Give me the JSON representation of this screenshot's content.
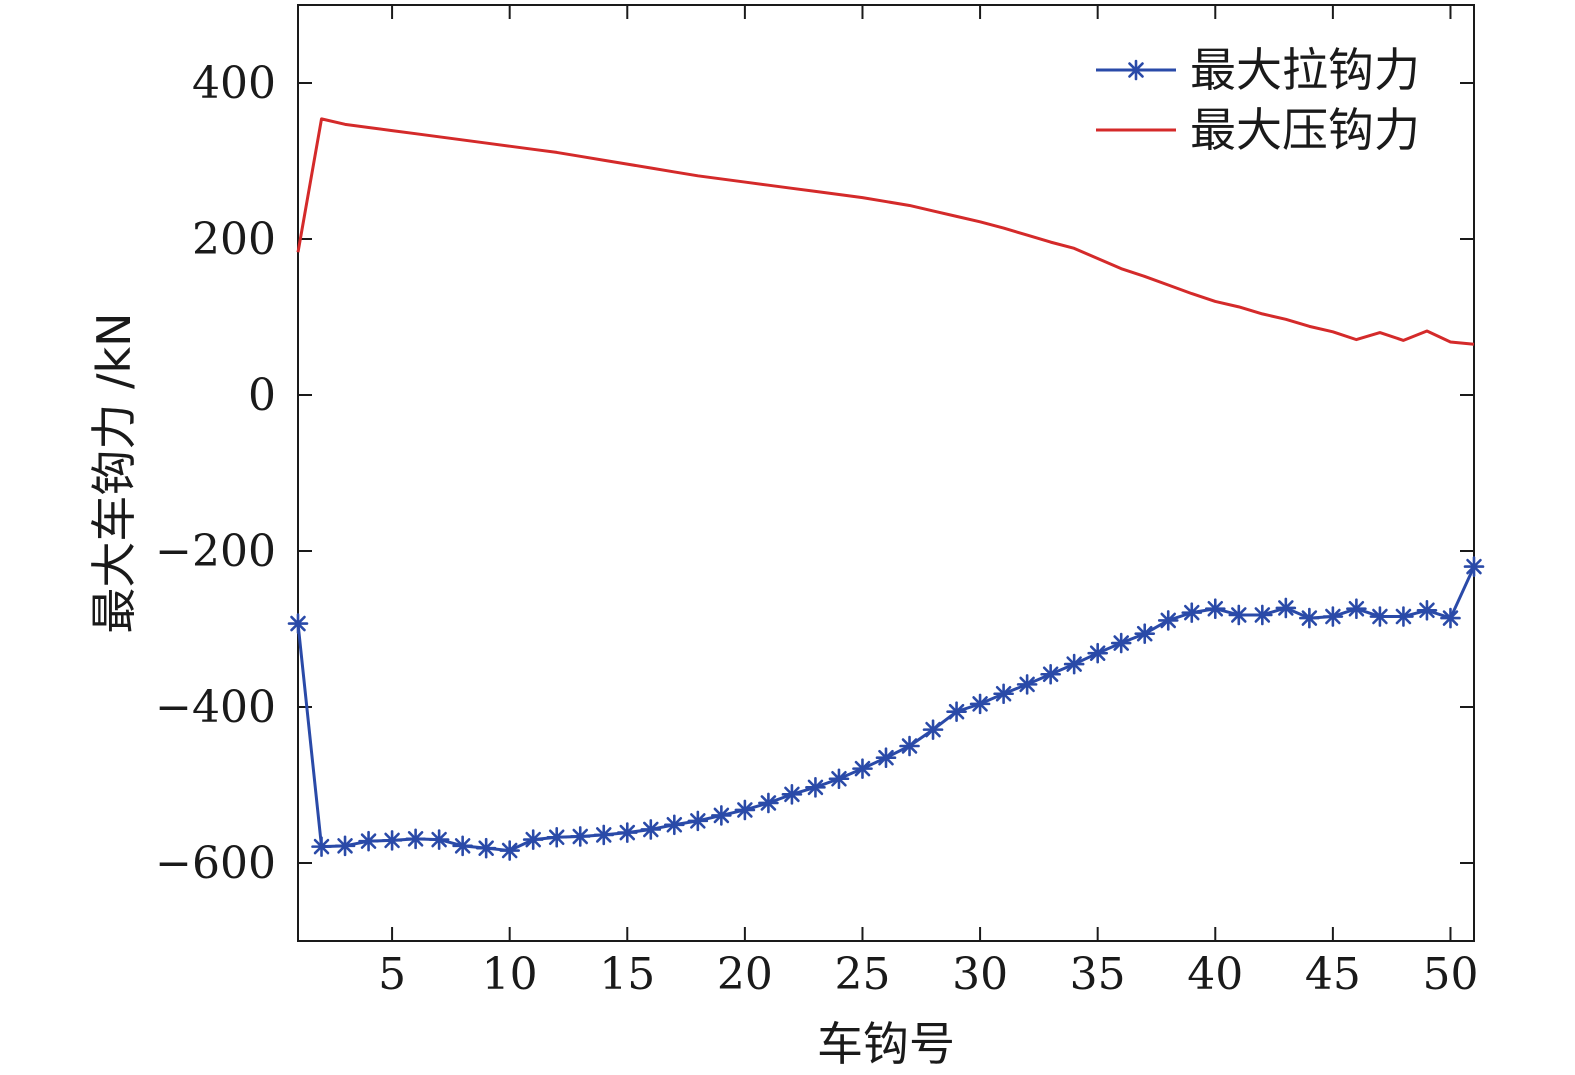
{
  "chart_data": {
    "type": "line",
    "xlabel": "车钩号",
    "ylabel": "最大车钩力 /kN",
    "xlim": [
      1,
      51
    ],
    "ylim": [
      -700,
      500
    ],
    "xticks": [
      5,
      10,
      15,
      20,
      25,
      30,
      35,
      40,
      45,
      50
    ],
    "yticks": [
      400,
      200,
      0,
      -200,
      -400,
      -600
    ],
    "ytick_labels": [
      "400",
      "200",
      "0",
      "−200",
      "−400",
      "−600"
    ],
    "grid": false,
    "legend_position": "top-right",
    "x": [
      1,
      2,
      3,
      4,
      5,
      6,
      7,
      8,
      9,
      10,
      11,
      12,
      13,
      14,
      15,
      16,
      17,
      18,
      19,
      20,
      21,
      22,
      23,
      24,
      25,
      26,
      27,
      28,
      29,
      30,
      31,
      32,
      33,
      34,
      35,
      36,
      37,
      38,
      39,
      40,
      41,
      42,
      43,
      44,
      45,
      46,
      47,
      48,
      49,
      50,
      51
    ],
    "series": [
      {
        "name": "最大拉钩力",
        "color": "#2a4aa8",
        "marker": "asterisk",
        "values": [
          -293,
          -579,
          -578,
          -572,
          -571,
          -569,
          -570,
          -578,
          -581,
          -584,
          -570,
          -567,
          -566,
          -564,
          -561,
          -557,
          -551,
          -546,
          -539,
          -532,
          -523,
          -512,
          -503,
          -492,
          -479,
          -465,
          -450,
          -429,
          -406,
          -396,
          -383,
          -371,
          -358,
          -345,
          -331,
          -318,
          -306,
          -289,
          -279,
          -274,
          -282,
          -282,
          -273,
          -286,
          -284,
          -274,
          -284,
          -284,
          -276,
          -286,
          -220
        ]
      },
      {
        "name": "最大压钩力",
        "color": "#d42a2a",
        "marker": "none",
        "values": [
          183,
          354,
          347,
          343,
          339,
          335,
          331,
          327,
          323,
          319,
          315,
          311,
          306,
          301,
          296,
          291,
          286,
          281,
          277,
          273,
          269,
          265,
          261,
          257,
          253,
          248,
          243,
          236,
          229,
          222,
          214,
          205,
          196,
          188,
          175,
          162,
          152,
          141,
          130,
          120,
          113,
          104,
          97,
          88,
          81,
          71,
          80,
          70,
          82,
          68,
          65
        ]
      }
    ]
  }
}
